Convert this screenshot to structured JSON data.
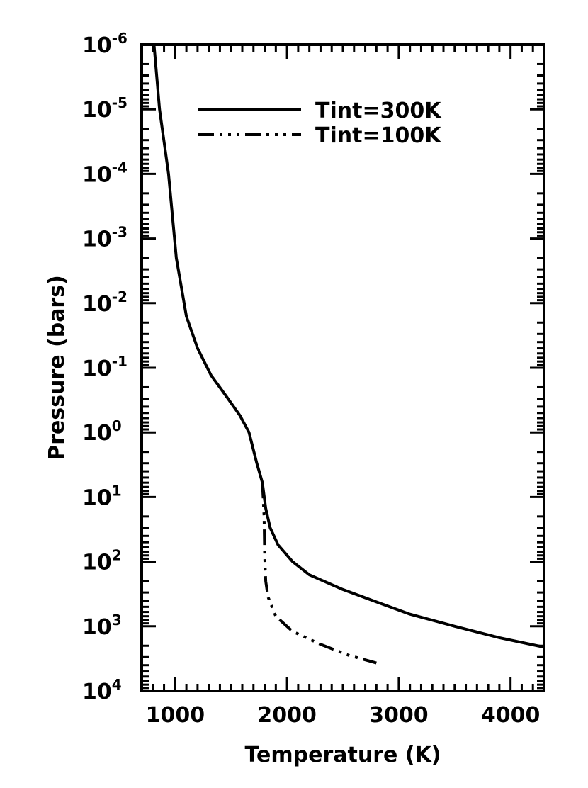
{
  "chart_data": {
    "type": "line",
    "title": "",
    "xlabel": "Temperature (K)",
    "ylabel": "Pressure (bars)",
    "xlim": [
      700,
      4300
    ],
    "ylim": [
      1e-06,
      10000.0
    ],
    "y_scale": "log",
    "y_inverted": true,
    "grid": false,
    "legend_position": "top-right",
    "x_ticks": [
      {
        "value": 1000,
        "label": "1000"
      },
      {
        "value": 2000,
        "label": "2000"
      },
      {
        "value": 3000,
        "label": "3000"
      },
      {
        "value": 4000,
        "label": "4000"
      }
    ],
    "y_ticks": [
      {
        "exp": -6,
        "base": "10",
        "sup": "-6"
      },
      {
        "exp": -5,
        "base": "10",
        "sup": "-5"
      },
      {
        "exp": -4,
        "base": "10",
        "sup": "-4"
      },
      {
        "exp": -3,
        "base": "10",
        "sup": "-3"
      },
      {
        "exp": -2,
        "base": "10",
        "sup": "-2"
      },
      {
        "exp": -1,
        "base": "10",
        "sup": "-1"
      },
      {
        "exp": 0,
        "base": "10",
        "sup": "0"
      },
      {
        "exp": 1,
        "base": "10",
        "sup": "1"
      },
      {
        "exp": 2,
        "base": "10",
        "sup": "2"
      },
      {
        "exp": 3,
        "base": "10",
        "sup": "3"
      },
      {
        "exp": 4,
        "base": "10",
        "sup": "4"
      }
    ],
    "series": [
      {
        "name": "Tint=300K",
        "line_style": "solid",
        "points": [
          {
            "T": 810,
            "P": 1e-06
          },
          {
            "T": 860,
            "P": 1e-05
          },
          {
            "T": 940,
            "P": 0.0001
          },
          {
            "T": 1010,
            "P": 0.002
          },
          {
            "T": 1100,
            "P": 0.016
          },
          {
            "T": 1200,
            "P": 0.05
          },
          {
            "T": 1320,
            "P": 0.13
          },
          {
            "T": 1460,
            "P": 0.28
          },
          {
            "T": 1580,
            "P": 0.55
          },
          {
            "T": 1660,
            "P": 1.0
          },
          {
            "T": 1730,
            "P": 3.0
          },
          {
            "T": 1780,
            "P": 6.0
          },
          {
            "T": 1810,
            "P": 15
          },
          {
            "T": 1850,
            "P": 30
          },
          {
            "T": 1920,
            "P": 55
          },
          {
            "T": 2050,
            "P": 100
          },
          {
            "T": 2200,
            "P": 160
          },
          {
            "T": 2500,
            "P": 270
          },
          {
            "T": 2800,
            "P": 420
          },
          {
            "T": 3100,
            "P": 650
          },
          {
            "T": 3500,
            "P": 1000
          },
          {
            "T": 3900,
            "P": 1500
          },
          {
            "T": 4300,
            "P": 2100
          }
        ]
      },
      {
        "name": "Tint=100K",
        "line_style": "dash-dot-dot-dot",
        "points": [
          {
            "T": 1780,
            "P": 6.0
          },
          {
            "T": 1795,
            "P": 20
          },
          {
            "T": 1800,
            "P": 80
          },
          {
            "T": 1810,
            "P": 200
          },
          {
            "T": 1830,
            "P": 350
          },
          {
            "T": 1900,
            "P": 700
          },
          {
            "T": 2050,
            "P": 1200
          },
          {
            "T": 2300,
            "P": 1900
          },
          {
            "T": 2550,
            "P": 2800
          },
          {
            "T": 2800,
            "P": 3700
          }
        ]
      }
    ]
  }
}
